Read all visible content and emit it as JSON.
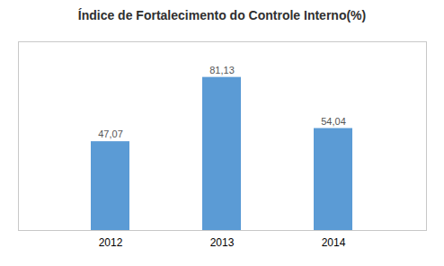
{
  "chart_data": {
    "type": "bar",
    "title": "Índice de Fortalecimento do Controle Interno(%)",
    "categories": [
      "2012",
      "2013",
      "2014"
    ],
    "values": [
      47.07,
      81.13,
      54.04
    ],
    "value_labels": [
      "47,07",
      "81,13",
      "54,04"
    ],
    "color": "#5b9bd5",
    "ylim": [
      0,
      100
    ],
    "grid": false,
    "data_labels": true,
    "tick_labels": "x"
  }
}
